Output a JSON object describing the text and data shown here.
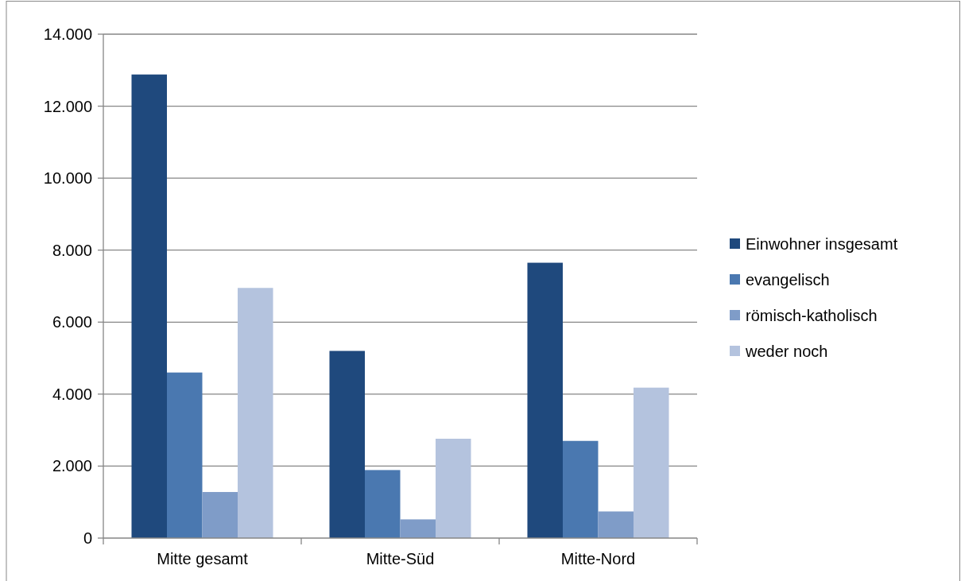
{
  "chart_data": {
    "type": "bar",
    "categories": [
      "Mitte gesamt",
      "Mitte-Süd",
      "Mitte-Nord"
    ],
    "series": [
      {
        "name": "Einwohner insgesamt",
        "color": "#1f497d",
        "values": [
          12880,
          5200,
          7650
        ]
      },
      {
        "name": "evangelisch",
        "color": "#4a78b0",
        "values": [
          4600,
          1890,
          2700
        ]
      },
      {
        "name": "römisch-katholisch",
        "color": "#7f9cc8",
        "values": [
          1280,
          520,
          740
        ]
      },
      {
        "name": "weder noch",
        "color": "#b4c3de",
        "values": [
          6950,
          2760,
          4180
        ]
      }
    ],
    "ylim": [
      0,
      14000
    ],
    "yticks": [
      {
        "value": 0,
        "label": "0"
      },
      {
        "value": 2000,
        "label": "2.000"
      },
      {
        "value": 4000,
        "label": "4.000"
      },
      {
        "value": 6000,
        "label": "6.000"
      },
      {
        "value": 8000,
        "label": "8.000"
      },
      {
        "value": 10000,
        "label": "10.000"
      },
      {
        "value": 12000,
        "label": "12.000"
      },
      {
        "value": 14000,
        "label": "14.000"
      }
    ],
    "grid": "y",
    "legend": "right"
  }
}
